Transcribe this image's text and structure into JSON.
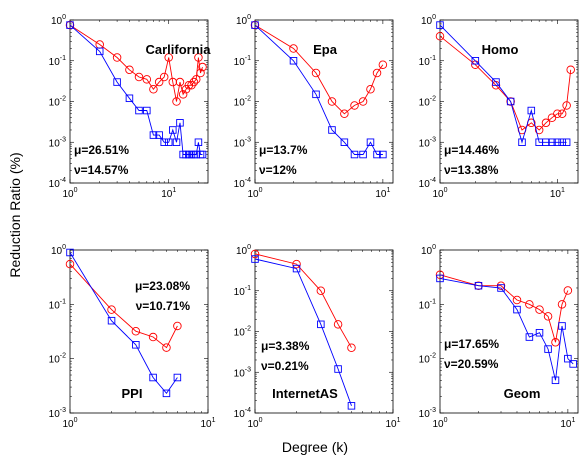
{
  "figure": {
    "ylabel": "Reduction Ratio (%)",
    "xlabel": "Degree (k)",
    "colors": {
      "red_series": "#ff0000",
      "blue_series": "#0000ff"
    }
  },
  "chart_data": [
    {
      "type": "line",
      "title": "Carlifornia",
      "stat_mu": "μ=26.51%",
      "stat_nu": "ν=14.57%",
      "xscale": "log",
      "yscale": "log",
      "xlim": [
        1,
        25
      ],
      "ylim": [
        0.0001,
        1
      ],
      "yticks": [
        "10^0",
        "10^-1",
        "10^-2",
        "10^-3",
        "10^-4"
      ],
      "xticks": [
        "10^0",
        "10^1"
      ],
      "series": [
        {
          "marker": "circle",
          "color": "#ff0000",
          "x": [
            1,
            2,
            3,
            4,
            5,
            6,
            7,
            8,
            9,
            10,
            11,
            12,
            13,
            14,
            15,
            16,
            17,
            18,
            19,
            20,
            21,
            22
          ],
          "y": [
            0.75,
            0.25,
            0.12,
            0.06,
            0.04,
            0.035,
            0.02,
            0.03,
            0.04,
            0.12,
            0.03,
            0.01,
            0.03,
            0.015,
            0.02,
            0.025,
            0.025,
            0.03,
            0.035,
            0.12,
            0.05,
            0.07
          ]
        },
        {
          "marker": "square",
          "color": "#0000ff",
          "x": [
            1,
            2,
            3,
            4,
            5,
            6,
            7,
            8,
            9,
            10,
            11,
            12,
            13,
            14,
            15,
            16,
            17,
            18,
            19,
            20,
            21,
            22
          ],
          "y": [
            0.75,
            0.17,
            0.03,
            0.012,
            0.006,
            0.006,
            0.0015,
            0.0015,
            0.001,
            0.001,
            0.002,
            0.001,
            0.003,
            0.0005,
            0.0005,
            0.0005,
            0.0005,
            0.0005,
            0.0005,
            0.001,
            0.0005,
            0.0005
          ]
        }
      ]
    },
    {
      "type": "line",
      "title": "Epa",
      "stat_mu": "μ=13.7%",
      "stat_nu": "ν=12%",
      "xscale": "log",
      "yscale": "log",
      "xlim": [
        1,
        12
      ],
      "ylim": [
        0.0001,
        1
      ],
      "yticks": [
        "10^0",
        "10^-1",
        "10^-2",
        "10^-3",
        "10^-4"
      ],
      "xticks": [
        "10^0",
        "10^1"
      ],
      "series": [
        {
          "marker": "circle",
          "color": "#ff0000",
          "x": [
            1,
            2,
            3,
            4,
            5,
            6,
            7,
            8,
            9,
            10
          ],
          "y": [
            0.75,
            0.2,
            0.05,
            0.01,
            0.005,
            0.008,
            0.01,
            0.02,
            0.05,
            0.08
          ]
        },
        {
          "marker": "square",
          "color": "#0000ff",
          "x": [
            1,
            2,
            3,
            4,
            5,
            6,
            7,
            8,
            9,
            10
          ],
          "y": [
            0.75,
            0.1,
            0.015,
            0.002,
            0.001,
            0.0005,
            0.0005,
            0.001,
            0.0005,
            0.0005
          ]
        }
      ]
    },
    {
      "type": "line",
      "title": "Homo",
      "stat_mu": "μ=14.46%",
      "stat_nu": "ν=13.38%",
      "xscale": "log",
      "yscale": "log",
      "xlim": [
        1,
        15
      ],
      "ylim": [
        0.0001,
        1
      ],
      "yticks": [
        "10^0",
        "10^-1",
        "10^-2",
        "10^-3",
        "10^-4"
      ],
      "xticks": [
        "10^0",
        "10^1"
      ],
      "series": [
        {
          "marker": "circle",
          "color": "#ff0000",
          "x": [
            1,
            2,
            3,
            4,
            5,
            6,
            7,
            8,
            9,
            10,
            11,
            12,
            13
          ],
          "y": [
            0.4,
            0.08,
            0.025,
            0.01,
            0.002,
            0.003,
            0.002,
            0.003,
            0.004,
            0.005,
            0.005,
            0.008,
            0.06
          ]
        },
        {
          "marker": "square",
          "color": "#0000ff",
          "x": [
            1,
            2,
            3,
            4,
            5,
            6,
            7,
            8,
            9,
            10,
            11,
            12
          ],
          "y": [
            0.75,
            0.1,
            0.03,
            0.01,
            0.001,
            0.006,
            0.001,
            0.001,
            0.001,
            0.001,
            0.001,
            0.001
          ]
        }
      ]
    },
    {
      "type": "line",
      "title": "PPI",
      "stat_mu": "μ=23.08%",
      "stat_nu": "ν=10.71%",
      "xscale": "log",
      "yscale": "log",
      "xlim": [
        1,
        10
      ],
      "ylim": [
        0.001,
        1
      ],
      "yticks": [
        "10^0",
        "10^-1",
        "10^-2",
        "10^-3"
      ],
      "xticks": [
        "10^0",
        "10^1"
      ],
      "series": [
        {
          "marker": "circle",
          "color": "#ff0000",
          "x": [
            1,
            2,
            3,
            4,
            5,
            6
          ],
          "y": [
            0.55,
            0.08,
            0.032,
            0.025,
            0.016,
            0.04
          ]
        },
        {
          "marker": "square",
          "color": "#0000ff",
          "x": [
            1,
            2,
            3,
            4,
            5,
            6
          ],
          "y": [
            0.9,
            0.05,
            0.018,
            0.0045,
            0.0023,
            0.0045
          ]
        }
      ]
    },
    {
      "type": "line",
      "title": "InternetAS",
      "stat_mu": "μ=3.38%",
      "stat_nu": "ν=0.21%",
      "xscale": "log",
      "yscale": "log",
      "xlim": [
        1,
        10
      ],
      "ylim": [
        0.0001,
        1
      ],
      "yticks": [
        "10^0",
        "10^-1",
        "10^-2",
        "10^-3",
        "10^-4"
      ],
      "xticks": [
        "10^0",
        "10^1"
      ],
      "series": [
        {
          "marker": "circle",
          "color": "#ff0000",
          "x": [
            1,
            2,
            3,
            4,
            5
          ],
          "y": [
            0.8,
            0.45,
            0.1,
            0.015,
            0.004
          ]
        },
        {
          "marker": "square",
          "color": "#0000ff",
          "x": [
            1,
            2,
            3,
            4,
            5
          ],
          "y": [
            0.6,
            0.35,
            0.015,
            0.0012,
            0.00015
          ]
        }
      ]
    },
    {
      "type": "line",
      "title": "Geom",
      "stat_mu": "μ=17.65%",
      "stat_nu": "ν=20.59%",
      "xscale": "log",
      "yscale": "log",
      "xlim": [
        1,
        12
      ],
      "ylim": [
        0.001,
        1
      ],
      "yticks": [
        "10^0",
        "10^-1",
        "10^-2",
        "10^-3"
      ],
      "xticks": [
        "10^0",
        "10^1"
      ],
      "series": [
        {
          "marker": "circle",
          "color": "#ff0000",
          "x": [
            1,
            2,
            3,
            4,
            5,
            6,
            7,
            8,
            9,
            10
          ],
          "y": [
            0.35,
            0.22,
            0.22,
            0.12,
            0.1,
            0.08,
            0.06,
            0.02,
            0.1,
            0.18
          ]
        },
        {
          "marker": "square",
          "color": "#0000ff",
          "x": [
            1,
            2,
            3,
            4,
            5,
            6,
            7,
            8,
            9,
            10,
            11
          ],
          "y": [
            0.3,
            0.22,
            0.2,
            0.08,
            0.025,
            0.03,
            0.015,
            0.004,
            0.04,
            0.01,
            0.008
          ]
        }
      ]
    }
  ]
}
